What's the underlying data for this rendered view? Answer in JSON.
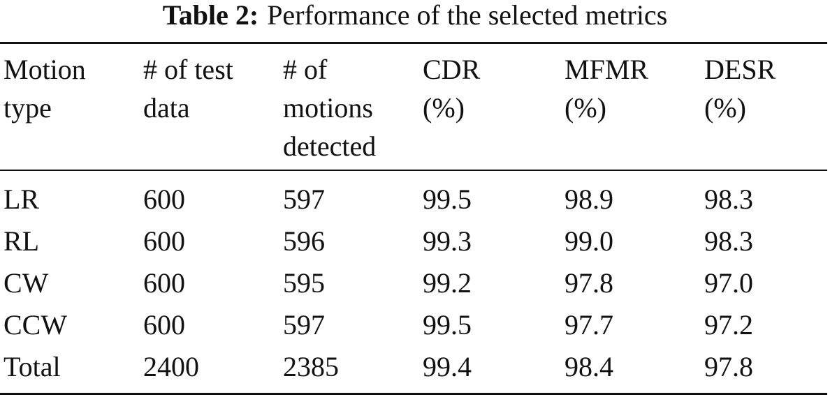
{
  "caption": {
    "label": "Table 2:",
    "text": "Performance of the selected metrics"
  },
  "table": {
    "header": [
      [
        "Motion",
        "type"
      ],
      [
        "# of test",
        "data"
      ],
      [
        "# of",
        "motions",
        "detected"
      ],
      [
        "CDR",
        "(%)"
      ],
      [
        "MFMR",
        "(%)"
      ],
      [
        "DESR",
        "(%)"
      ]
    ],
    "rows": [
      [
        "LR",
        "600",
        "597",
        "99.5",
        "98.9",
        "98.3"
      ],
      [
        "RL",
        "600",
        "596",
        "99.3",
        "99.0",
        "98.3"
      ],
      [
        "CW",
        "600",
        "595",
        "99.2",
        "97.8",
        "97.0"
      ],
      [
        "CCW",
        "600",
        "597",
        "99.5",
        "97.7",
        "97.2"
      ],
      [
        "Total",
        "2400",
        "2385",
        "99.4",
        "98.4",
        "97.8"
      ]
    ]
  }
}
